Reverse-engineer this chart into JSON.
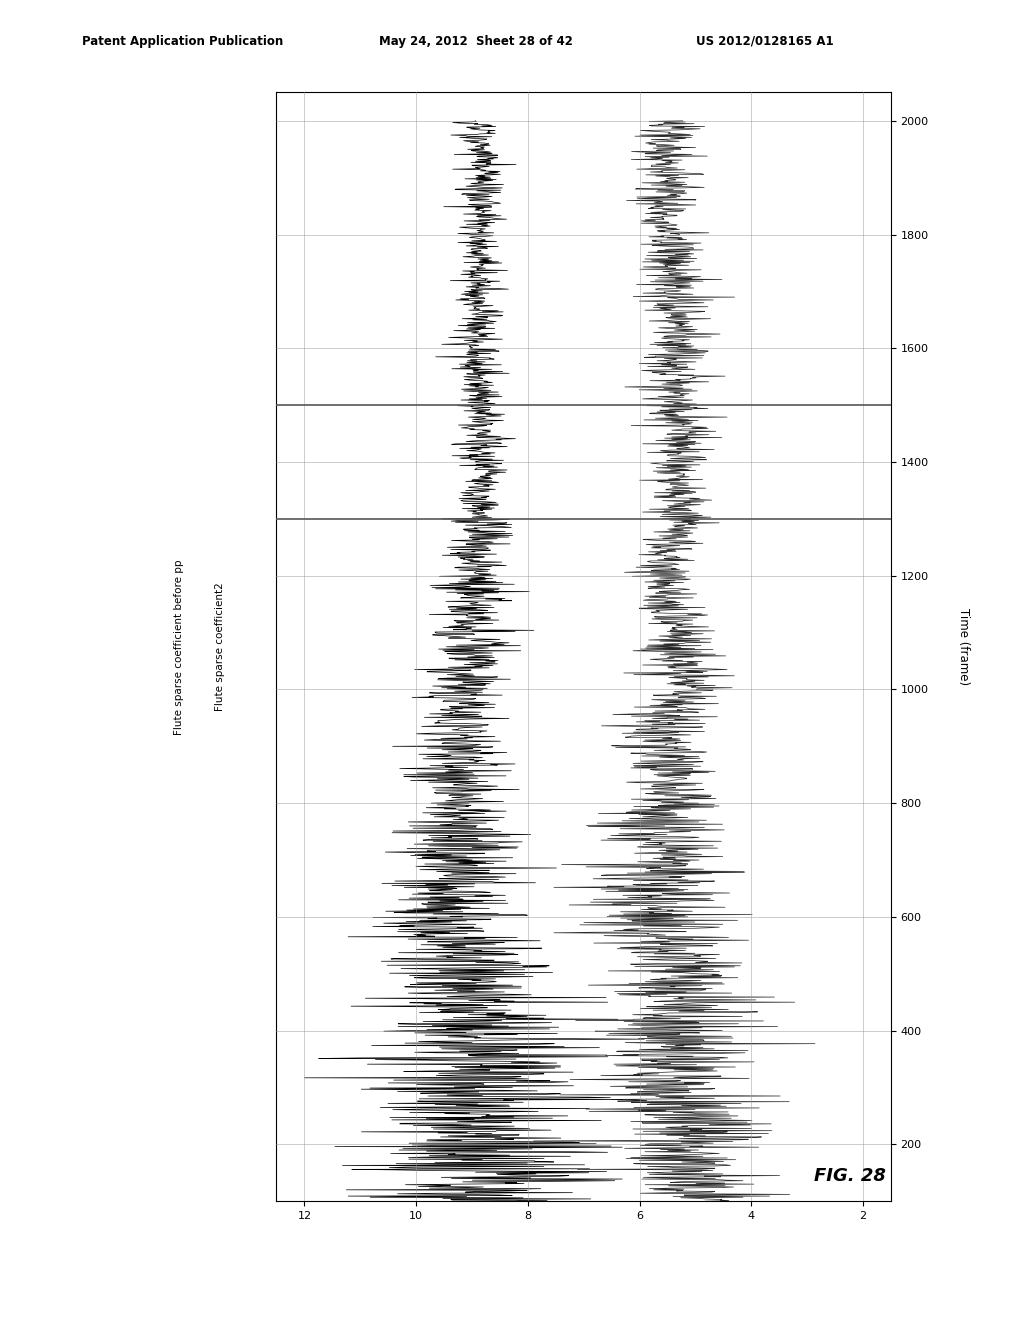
{
  "title": "FIG. 28",
  "time_label": "Time (frame)",
  "legend_line1": "Flute sparse coefficient before pp",
  "legend_line2": "Flute sparse coefficient2",
  "coeff_ticks": [
    2,
    4,
    6,
    8,
    10,
    12
  ],
  "time_ticks": [
    200,
    400,
    600,
    800,
    1000,
    1200,
    1400,
    1600,
    1800,
    2000
  ],
  "coeff_lim": [
    1.5,
    12.5
  ],
  "time_lim": [
    100,
    2050
  ],
  "header_left": "Patent Application Publication",
  "header_mid": "May 24, 2012  Sheet 28 of 42",
  "header_right": "US 2012/0128165 A1",
  "background_color": "#ffffff",
  "line_color": "#000000",
  "grid_color": "#999999",
  "thick_grid_times": [
    1300,
    1500
  ],
  "thick_grid_coeffs": []
}
